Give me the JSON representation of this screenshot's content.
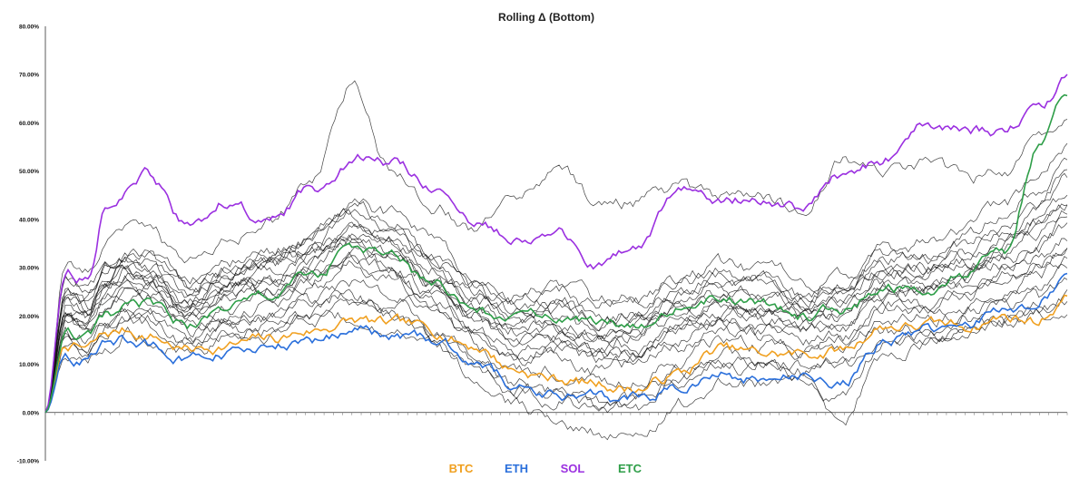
{
  "chart_data": {
    "type": "line",
    "title": "Rolling Δ (Bottom)",
    "xlabel": "",
    "ylabel": "",
    "ylim": [
      -0.1,
      0.8
    ],
    "y_ticks": [
      -0.1,
      0.0,
      0.1,
      0.2,
      0.3,
      0.4,
      0.5,
      0.6,
      0.7,
      0.8
    ],
    "y_tick_labels": [
      "-10.00%",
      "0.00%",
      "10.00%",
      "20.00%",
      "30.00%",
      "40.00%",
      "50.00%",
      "60.00%",
      "70.00%",
      "80.00%"
    ],
    "x_tick_count": 110,
    "grid": false,
    "legend_position": "bottom-center",
    "x": [
      0,
      0.02,
      0.04,
      0.06,
      0.08,
      0.1,
      0.14,
      0.18,
      0.22,
      0.26,
      0.3,
      0.34,
      0.38,
      0.42,
      0.46,
      0.5,
      0.54,
      0.58,
      0.62,
      0.66,
      0.7,
      0.74,
      0.78,
      0.82,
      0.86,
      0.9,
      0.94,
      0.97,
      1.0
    ],
    "series": [
      {
        "name": "BTC",
        "color": "#f0a020",
        "values": [
          0.0,
          0.14,
          0.13,
          0.16,
          0.17,
          0.16,
          0.13,
          0.14,
          0.15,
          0.17,
          0.19,
          0.18,
          0.17,
          0.14,
          0.09,
          0.07,
          0.06,
          0.05,
          0.08,
          0.13,
          0.12,
          0.12,
          0.13,
          0.18,
          0.18,
          0.18,
          0.2,
          0.19,
          0.24
        ]
      },
      {
        "name": "ETH",
        "color": "#2a6fdb",
        "values": [
          0.0,
          0.12,
          0.11,
          0.14,
          0.15,
          0.14,
          0.11,
          0.12,
          0.13,
          0.15,
          0.17,
          0.16,
          0.15,
          0.11,
          0.06,
          0.04,
          0.03,
          0.03,
          0.05,
          0.08,
          0.07,
          0.07,
          0.06,
          0.15,
          0.17,
          0.17,
          0.22,
          0.23,
          0.28
        ]
      },
      {
        "name": "SOL",
        "color": "#9b30e0",
        "values": [
          0.0,
          0.3,
          0.28,
          0.44,
          0.46,
          0.49,
          0.38,
          0.44,
          0.39,
          0.46,
          0.53,
          0.52,
          0.47,
          0.38,
          0.37,
          0.37,
          0.3,
          0.34,
          0.46,
          0.44,
          0.45,
          0.42,
          0.49,
          0.52,
          0.6,
          0.58,
          0.58,
          0.63,
          0.69
        ]
      },
      {
        "name": "ETC",
        "color": "#2e9e48",
        "values": [
          0.0,
          0.16,
          0.15,
          0.19,
          0.21,
          0.22,
          0.18,
          0.22,
          0.24,
          0.28,
          0.34,
          0.32,
          0.26,
          0.21,
          0.19,
          0.2,
          0.18,
          0.19,
          0.22,
          0.24,
          0.22,
          0.2,
          0.22,
          0.26,
          0.25,
          0.28,
          0.33,
          0.55,
          0.68
        ]
      }
    ],
    "background_series": [
      {
        "name": "other-01",
        "color": "#111111",
        "values": [
          0.0,
          0.25,
          0.22,
          0.28,
          0.31,
          0.3,
          0.24,
          0.28,
          0.3,
          0.33,
          0.39,
          0.36,
          0.3,
          0.24,
          0.2,
          0.22,
          0.19,
          0.2,
          0.24,
          0.26,
          0.25,
          0.22,
          0.24,
          0.3,
          0.3,
          0.33,
          0.37,
          0.42,
          0.48
        ]
      },
      {
        "name": "other-02",
        "color": "#111111",
        "values": [
          0.0,
          0.2,
          0.18,
          0.24,
          0.27,
          0.26,
          0.2,
          0.24,
          0.26,
          0.29,
          0.33,
          0.3,
          0.25,
          0.19,
          0.14,
          0.15,
          0.12,
          0.13,
          0.17,
          0.2,
          0.19,
          0.17,
          0.18,
          0.24,
          0.24,
          0.26,
          0.3,
          0.32,
          0.36
        ]
      },
      {
        "name": "other-03",
        "color": "#111111",
        "values": [
          0.0,
          0.22,
          0.2,
          0.26,
          0.29,
          0.28,
          0.22,
          0.26,
          0.28,
          0.31,
          0.36,
          0.33,
          0.27,
          0.21,
          0.17,
          0.18,
          0.15,
          0.16,
          0.2,
          0.23,
          0.22,
          0.2,
          0.21,
          0.27,
          0.27,
          0.29,
          0.34,
          0.37,
          0.42
        ]
      },
      {
        "name": "other-04",
        "color": "#111111",
        "values": [
          0.0,
          0.18,
          0.16,
          0.21,
          0.24,
          0.23,
          0.18,
          0.21,
          0.23,
          0.26,
          0.3,
          0.27,
          0.22,
          0.16,
          0.11,
          0.12,
          0.09,
          0.1,
          0.14,
          0.17,
          0.16,
          0.14,
          0.15,
          0.21,
          0.21,
          0.23,
          0.27,
          0.29,
          0.32
        ]
      },
      {
        "name": "other-05",
        "color": "#111111",
        "values": [
          0.0,
          0.27,
          0.24,
          0.3,
          0.33,
          0.32,
          0.26,
          0.3,
          0.33,
          0.36,
          0.42,
          0.39,
          0.33,
          0.27,
          0.23,
          0.25,
          0.22,
          0.23,
          0.27,
          0.29,
          0.28,
          0.25,
          0.27,
          0.33,
          0.33,
          0.36,
          0.41,
          0.46,
          0.52
        ]
      },
      {
        "name": "other-06",
        "color": "#111111",
        "values": [
          0.0,
          0.17,
          0.15,
          0.19,
          0.21,
          0.2,
          0.16,
          0.19,
          0.2,
          0.23,
          0.27,
          0.24,
          0.2,
          0.14,
          0.08,
          0.09,
          0.06,
          0.07,
          0.11,
          0.15,
          0.14,
          0.12,
          0.13,
          0.19,
          0.19,
          0.21,
          0.24,
          0.26,
          0.29
        ]
      },
      {
        "name": "other-07",
        "color": "#111111",
        "values": [
          0.0,
          0.23,
          0.21,
          0.27,
          0.3,
          0.29,
          0.23,
          0.27,
          0.29,
          0.32,
          0.37,
          0.34,
          0.28,
          0.22,
          0.18,
          0.19,
          0.16,
          0.17,
          0.21,
          0.24,
          0.23,
          0.21,
          0.22,
          0.28,
          0.28,
          0.31,
          0.35,
          0.39,
          0.44
        ]
      },
      {
        "name": "other-08",
        "color": "#111111",
        "values": [
          0.0,
          0.15,
          0.14,
          0.18,
          0.2,
          0.19,
          0.15,
          0.18,
          0.19,
          0.22,
          0.25,
          0.22,
          0.18,
          0.12,
          0.06,
          0.05,
          0.02,
          0.03,
          0.08,
          0.12,
          0.11,
          0.1,
          0.11,
          0.17,
          0.17,
          0.19,
          0.22,
          0.23,
          0.26
        ]
      },
      {
        "name": "other-09",
        "color": "#111111",
        "values": [
          0.0,
          0.24,
          0.22,
          0.28,
          0.3,
          0.3,
          0.25,
          0.29,
          0.31,
          0.35,
          0.41,
          0.38,
          0.32,
          0.26,
          0.22,
          0.23,
          0.2,
          0.21,
          0.25,
          0.27,
          0.26,
          0.24,
          0.25,
          0.31,
          0.31,
          0.34,
          0.39,
          0.44,
          0.5
        ]
      },
      {
        "name": "other-10",
        "color": "#111111",
        "values": [
          0.0,
          0.21,
          0.19,
          0.25,
          0.28,
          0.27,
          0.21,
          0.25,
          0.27,
          0.3,
          0.35,
          0.32,
          0.26,
          0.2,
          0.15,
          0.16,
          0.13,
          0.14,
          0.18,
          0.21,
          0.2,
          0.18,
          0.19,
          0.25,
          0.25,
          0.28,
          0.32,
          0.35,
          0.4
        ]
      },
      {
        "name": "other-11",
        "color": "#111111",
        "values": [
          0.0,
          0.13,
          0.12,
          0.15,
          0.17,
          0.16,
          0.13,
          0.15,
          0.16,
          0.18,
          0.2,
          0.17,
          0.13,
          0.08,
          0.02,
          -0.02,
          -0.04,
          -0.03,
          0.02,
          0.07,
          0.06,
          0.04,
          0.03,
          0.14,
          0.15,
          0.16,
          0.19,
          0.2,
          0.22
        ]
      },
      {
        "name": "other-12",
        "color": "#111111",
        "values": [
          0.0,
          0.31,
          0.28,
          0.36,
          0.38,
          0.37,
          0.3,
          0.35,
          0.4,
          0.47,
          0.68,
          0.5,
          0.44,
          0.38,
          0.45,
          0.5,
          0.43,
          0.44,
          0.46,
          0.44,
          0.44,
          0.42,
          0.52,
          0.5,
          0.52,
          0.48,
          0.5,
          0.57,
          0.6
        ]
      },
      {
        "name": "other-13",
        "color": "#111111",
        "values": [
          0.0,
          0.19,
          0.17,
          0.22,
          0.25,
          0.24,
          0.19,
          0.22,
          0.24,
          0.27,
          0.31,
          0.28,
          0.23,
          0.17,
          0.12,
          0.13,
          0.1,
          0.11,
          0.15,
          0.18,
          0.17,
          0.15,
          0.16,
          0.22,
          0.22,
          0.24,
          0.28,
          0.3,
          0.34
        ]
      },
      {
        "name": "other-14",
        "color": "#111111",
        "values": [
          0.0,
          0.26,
          0.23,
          0.29,
          0.32,
          0.31,
          0.25,
          0.29,
          0.32,
          0.35,
          0.4,
          0.37,
          0.31,
          0.25,
          0.21,
          0.22,
          0.19,
          0.2,
          0.24,
          0.27,
          0.26,
          0.23,
          0.25,
          0.3,
          0.3,
          0.32,
          0.36,
          0.4,
          0.45
        ]
      },
      {
        "name": "other-15",
        "color": "#111111",
        "values": [
          0.0,
          0.16,
          0.14,
          0.18,
          0.2,
          0.19,
          0.14,
          0.17,
          0.18,
          0.21,
          0.24,
          0.21,
          0.16,
          0.1,
          0.04,
          0.03,
          0.0,
          0.01,
          0.06,
          0.1,
          0.09,
          0.08,
          -0.01,
          0.12,
          0.14,
          0.16,
          0.19,
          0.21,
          0.23
        ]
      },
      {
        "name": "other-16",
        "color": "#111111",
        "values": [
          0.0,
          0.28,
          0.25,
          0.31,
          0.34,
          0.33,
          0.27,
          0.31,
          0.34,
          0.37,
          0.43,
          0.41,
          0.35,
          0.29,
          0.25,
          0.26,
          0.23,
          0.24,
          0.28,
          0.3,
          0.29,
          0.27,
          0.28,
          0.34,
          0.35,
          0.38,
          0.43,
          0.49,
          0.55
        ]
      },
      {
        "name": "other-17",
        "color": "#111111",
        "values": [
          0.0,
          0.22,
          0.2,
          0.25,
          0.28,
          0.27,
          0.22,
          0.26,
          0.28,
          0.31,
          0.36,
          0.33,
          0.28,
          0.22,
          0.17,
          0.18,
          0.15,
          0.16,
          0.2,
          0.22,
          0.21,
          0.19,
          0.2,
          0.26,
          0.26,
          0.28,
          0.31,
          0.34,
          0.38
        ]
      },
      {
        "name": "other-18",
        "color": "#111111",
        "values": [
          0.0,
          0.2,
          0.17,
          0.23,
          0.26,
          0.25,
          0.2,
          0.23,
          0.25,
          0.28,
          0.32,
          0.29,
          0.24,
          0.18,
          0.13,
          0.14,
          0.11,
          0.12,
          0.16,
          0.19,
          0.18,
          0.16,
          0.17,
          0.23,
          0.23,
          0.25,
          0.29,
          0.31,
          0.35
        ]
      },
      {
        "name": "other-19",
        "color": "#111111",
        "values": [
          0.0,
          0.24,
          0.21,
          0.27,
          0.3,
          0.29,
          0.24,
          0.28,
          0.3,
          0.33,
          0.38,
          0.35,
          0.3,
          0.24,
          0.19,
          0.2,
          0.17,
          0.18,
          0.22,
          0.25,
          0.24,
          0.22,
          0.23,
          0.29,
          0.29,
          0.31,
          0.35,
          0.38,
          0.43
        ]
      },
      {
        "name": "other-20",
        "color": "#111111",
        "values": [
          0.0,
          0.14,
          0.13,
          0.17,
          0.19,
          0.18,
          0.14,
          0.17,
          0.18,
          0.2,
          0.23,
          0.2,
          0.16,
          0.1,
          0.05,
          0.04,
          0.01,
          0.02,
          0.07,
          0.11,
          0.1,
          0.09,
          0.09,
          0.15,
          0.16,
          0.18,
          0.2,
          0.22,
          0.24
        ]
      }
    ]
  },
  "legend": {
    "items": [
      {
        "label": "BTC",
        "color": "#f0a020"
      },
      {
        "label": "ETH",
        "color": "#2a6fdb"
      },
      {
        "label": "SOL",
        "color": "#9b30e0"
      },
      {
        "label": "ETC",
        "color": "#2e9e48"
      }
    ]
  }
}
